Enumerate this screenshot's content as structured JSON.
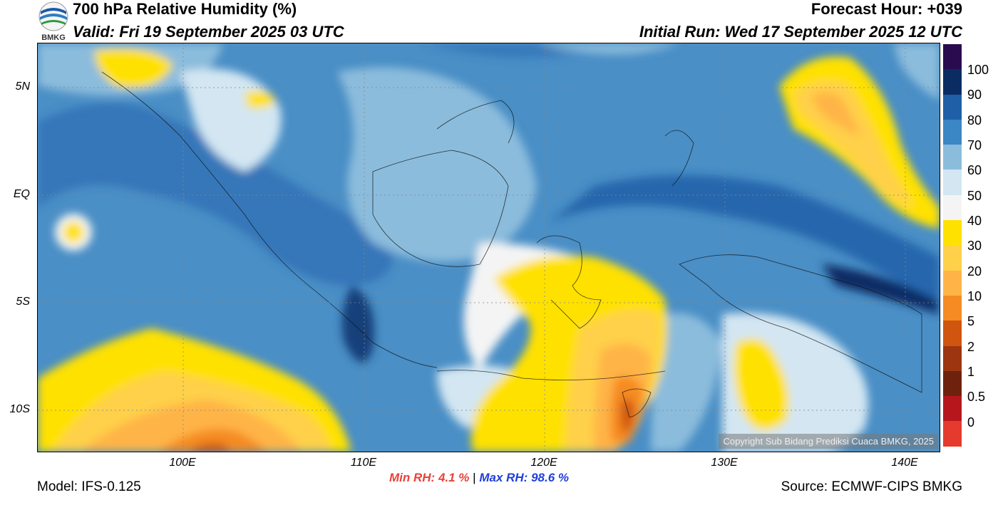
{
  "header": {
    "title": "700 hPa Relative Humidity (%)",
    "valid": "Valid: Fri 19 September 2025 03 UTC",
    "forecast_hour": "Forecast Hour: +039",
    "initial_run": "Initial Run: Wed 17 September 2025 12 UTC"
  },
  "logo": {
    "text": "BMKG",
    "icon": "bmkg-logo-icon"
  },
  "axes": {
    "y_labels": [
      "5N",
      "EQ",
      "5S",
      "10S"
    ],
    "x_labels": [
      "100E",
      "110E",
      "120E",
      "130E",
      "140E"
    ]
  },
  "colorbar": {
    "labels": [
      "100",
      "90",
      "80",
      "70",
      "60",
      "50",
      "40",
      "30",
      "20",
      "10",
      "5",
      "2",
      "1",
      "0.5",
      "0"
    ],
    "colors": [
      "#2b0b4f",
      "#0b2c63",
      "#1f5fa8",
      "#3b86c4",
      "#8bbcdc",
      "#d3e6f2",
      "#f4f4f4",
      "#ffe100",
      "#ffd04a",
      "#ffb447",
      "#f58b22",
      "#d0550e",
      "#9c3510",
      "#6e220d",
      "#b5171d",
      "#e53a2e"
    ]
  },
  "copyright": "Copyright Sub Bidang Prediksi Cuaca BMKG, 2025",
  "stats": {
    "min_label": "Min RH:",
    "min_value": "4.1 %",
    "separator": "|",
    "max_label": "Max RH:",
    "max_value": "98.6 %",
    "min_color": "#e8423a",
    "max_color": "#1f3fd9"
  },
  "footer": {
    "model": "Model: IFS-0.125",
    "source": "Source: ECMWF-CIPS BMKG"
  }
}
